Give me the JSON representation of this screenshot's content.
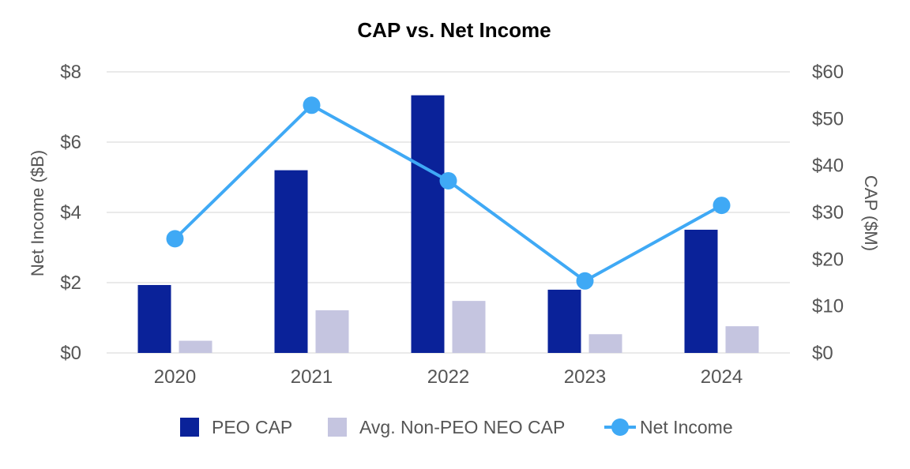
{
  "chart_data": {
    "type": "bar",
    "title": "CAP vs. Net Income",
    "categories": [
      "2020",
      "2021",
      "2022",
      "2023",
      "2024"
    ],
    "y_left": {
      "label": "Net Income ($B)",
      "range": [
        0,
        8
      ],
      "ticks": [
        0,
        2,
        4,
        6,
        8
      ],
      "tick_labels": [
        "$0",
        "$2",
        "$4",
        "$6",
        "$8"
      ]
    },
    "y_right": {
      "label": "CAP ($M)",
      "range": [
        0,
        60
      ],
      "ticks": [
        0,
        10,
        20,
        30,
        40,
        50,
        60
      ],
      "tick_labels": [
        "$0",
        "$10",
        "$20",
        "$30",
        "$40",
        "$50",
        "$60"
      ]
    },
    "series": [
      {
        "name": "PEO CAP",
        "type": "bar",
        "axis": "right",
        "color": "#0a2299",
        "values": [
          14.5,
          39.0,
          55.0,
          13.5,
          26.3
        ]
      },
      {
        "name": "Avg. Non-PEO NEO CAP",
        "type": "bar",
        "axis": "right",
        "color": "#c5c5e0",
        "values": [
          2.6,
          9.1,
          11.1,
          4.0,
          5.7
        ]
      },
      {
        "name": "Net Income",
        "type": "line",
        "axis": "left",
        "color": "#3fa9f5",
        "values": [
          3.25,
          7.05,
          4.9,
          2.05,
          4.2
        ]
      }
    ],
    "grid": true,
    "legend_position": "bottom"
  }
}
